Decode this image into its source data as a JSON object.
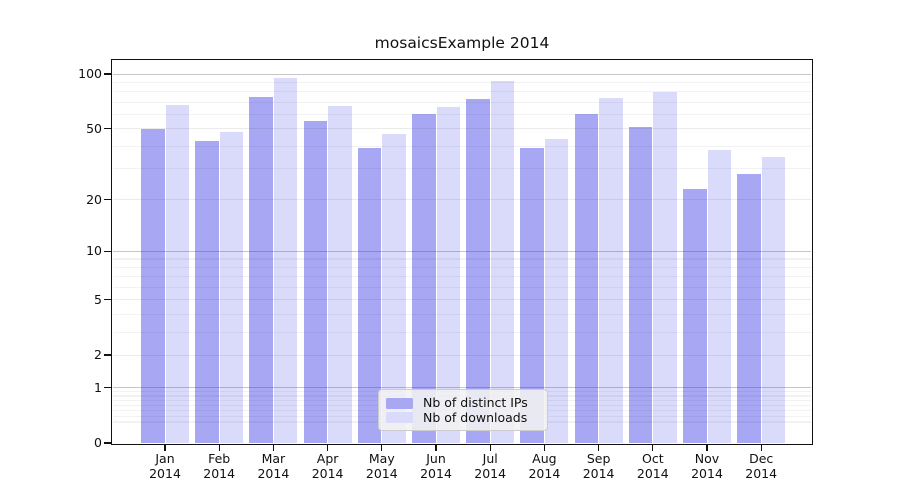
{
  "chart_data": {
    "type": "bar",
    "title": "mosaicsExample 2014",
    "categories": [
      "Jan",
      "Feb",
      "Mar",
      "Apr",
      "May",
      "Jun",
      "Jul",
      "Aug",
      "Sep",
      "Oct",
      "Nov",
      "Dec"
    ],
    "x_tick_second_line": "2014",
    "series": [
      {
        "name": "Nb of distinct IPs",
        "color": "#a7a7f3",
        "values": [
          50,
          43,
          75,
          55,
          39,
          60,
          73,
          39,
          60,
          51,
          23,
          28
        ]
      },
      {
        "name": "Nb of downloads",
        "color": "#dadafa",
        "values": [
          68,
          48,
          95,
          67,
          47,
          66,
          92,
          44,
          74,
          80,
          38,
          35
        ]
      }
    ],
    "y_axis": {
      "scale": "symlog",
      "tick_labels": [
        "100",
        "50",
        "20",
        "10",
        "5",
        "2",
        "1",
        "0"
      ],
      "tick_values": [
        100,
        50,
        20,
        10,
        5,
        2,
        1,
        0
      ],
      "range": [
        0,
        118
      ]
    },
    "legend": {
      "position": "lower center",
      "entries": [
        "Nb of distinct IPs",
        "Nb of downloads"
      ]
    },
    "grid": true,
    "background_color": "#ffffff"
  }
}
